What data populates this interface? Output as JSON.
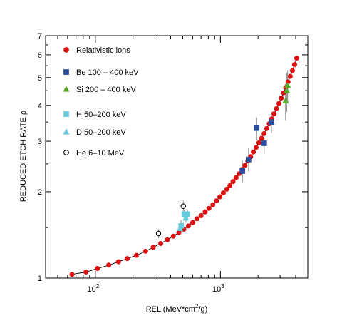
{
  "chart_data": {
    "type": "scatter",
    "title": "",
    "xlabel": "REL (MeV*cm²/g)",
    "ylabel": "REDUCED ETCH RATE  ρ",
    "xscale": "log",
    "yscale": "log",
    "xlim": [
      40,
      5000
    ],
    "ylim": [
      1,
      7
    ],
    "grid": false,
    "legend_position": "top-left",
    "x_ticks": [
      {
        "value": 100,
        "base": "10",
        "exp": "2"
      },
      {
        "value": 1000,
        "base": "10",
        "exp": "3"
      }
    ],
    "y_ticks": [
      1,
      2,
      3,
      4,
      5,
      6,
      7
    ],
    "y_tick_labels": [
      "1",
      "2",
      "3",
      "4",
      "5",
      "6",
      "7"
    ],
    "series": [
      {
        "name": "Relativistic ions",
        "marker": "circle",
        "color": "#dd1111",
        "filled": true,
        "curve": true,
        "points": [
          {
            "x": 65,
            "y": 1.03
          },
          {
            "x": 84,
            "y": 1.05
          },
          {
            "x": 104,
            "y": 1.08
          },
          {
            "x": 128,
            "y": 1.11
          },
          {
            "x": 153,
            "y": 1.14
          },
          {
            "x": 180,
            "y": 1.17
          },
          {
            "x": 213,
            "y": 1.2
          },
          {
            "x": 252,
            "y": 1.24
          },
          {
            "x": 290,
            "y": 1.28
          },
          {
            "x": 333,
            "y": 1.32
          },
          {
            "x": 377,
            "y": 1.36
          },
          {
            "x": 420,
            "y": 1.4
          },
          {
            "x": 465,
            "y": 1.44
          },
          {
            "x": 510,
            "y": 1.48
          },
          {
            "x": 555,
            "y": 1.52
          },
          {
            "x": 600,
            "y": 1.56
          },
          {
            "x": 650,
            "y": 1.61
          },
          {
            "x": 700,
            "y": 1.65
          },
          {
            "x": 755,
            "y": 1.7
          },
          {
            "x": 810,
            "y": 1.75
          },
          {
            "x": 870,
            "y": 1.8
          },
          {
            "x": 930,
            "y": 1.86
          },
          {
            "x": 990,
            "y": 1.92
          },
          {
            "x": 1055,
            "y": 1.98
          },
          {
            "x": 1125,
            "y": 2.04
          },
          {
            "x": 1190,
            "y": 2.1
          },
          {
            "x": 1260,
            "y": 2.17
          },
          {
            "x": 1335,
            "y": 2.24
          },
          {
            "x": 1410,
            "y": 2.31
          },
          {
            "x": 1490,
            "y": 2.39
          },
          {
            "x": 1570,
            "y": 2.47
          },
          {
            "x": 1655,
            "y": 2.56
          },
          {
            "x": 1745,
            "y": 2.65
          },
          {
            "x": 1835,
            "y": 2.75
          },
          {
            "x": 1930,
            "y": 2.85
          },
          {
            "x": 2030,
            "y": 2.96
          },
          {
            "x": 2130,
            "y": 3.07
          },
          {
            "x": 2235,
            "y": 3.19
          },
          {
            "x": 2345,
            "y": 3.32
          },
          {
            "x": 2455,
            "y": 3.45
          },
          {
            "x": 2570,
            "y": 3.59
          },
          {
            "x": 2690,
            "y": 3.74
          },
          {
            "x": 2810,
            "y": 3.9
          },
          {
            "x": 2935,
            "y": 4.06
          },
          {
            "x": 3065,
            "y": 4.24
          },
          {
            "x": 3200,
            "y": 4.42
          },
          {
            "x": 3335,
            "y": 4.62
          },
          {
            "x": 3475,
            "y": 4.83
          },
          {
            "x": 3620,
            "y": 5.05
          },
          {
            "x": 3770,
            "y": 5.29
          },
          {
            "x": 3920,
            "y": 5.55
          },
          {
            "x": 4075,
            "y": 5.84
          }
        ]
      },
      {
        "name": "Be 100 – 400 keV",
        "marker": "square",
        "color": "#2a4a9c",
        "filled": true,
        "curve": false,
        "points": [
          {
            "x": 1500,
            "y": 2.36,
            "err": 0.2
          },
          {
            "x": 1680,
            "y": 2.59,
            "err": 0.24
          },
          {
            "x": 1950,
            "y": 3.33,
            "err": 0.3
          },
          {
            "x": 2240,
            "y": 2.95,
            "err": 0.24
          },
          {
            "x": 2560,
            "y": 3.5,
            "err": 0.3
          }
        ]
      },
      {
        "name": "Si 200 – 400 keV",
        "marker": "triangle",
        "color": "#5aab2a",
        "filled": true,
        "curve": false,
        "points": [
          {
            "x": 3320,
            "y": 4.15,
            "err": 0.6
          },
          {
            "x": 3400,
            "y": 4.5,
            "err": 0.7
          },
          {
            "x": 3450,
            "y": 4.7,
            "err": 0.6
          }
        ]
      },
      {
        "name": "H 50–200 keV",
        "marker": "square",
        "color": "#66ccdd",
        "filled": true,
        "curve": false,
        "points": [
          {
            "x": 485,
            "y": 1.52,
            "err": 0.07
          },
          {
            "x": 515,
            "y": 1.67,
            "err": 0.06
          },
          {
            "x": 545,
            "y": 1.67,
            "err": 0.06
          }
        ]
      },
      {
        "name": "D 50–200 keV",
        "marker": "triangle",
        "color": "#66ccdd",
        "filled": true,
        "curve": false,
        "points": [
          {
            "x": 475,
            "y": 1.49,
            "err": 0.06
          },
          {
            "x": 530,
            "y": 1.62,
            "err": 0.06
          }
        ]
      },
      {
        "name": "He 6–10 MeV",
        "marker": "circle",
        "color": "#000000",
        "filled": false,
        "curve": false,
        "points": [
          {
            "x": 320,
            "y": 1.43,
            "err": 0.05
          },
          {
            "x": 505,
            "y": 1.78,
            "err": 0.08
          }
        ]
      }
    ]
  }
}
